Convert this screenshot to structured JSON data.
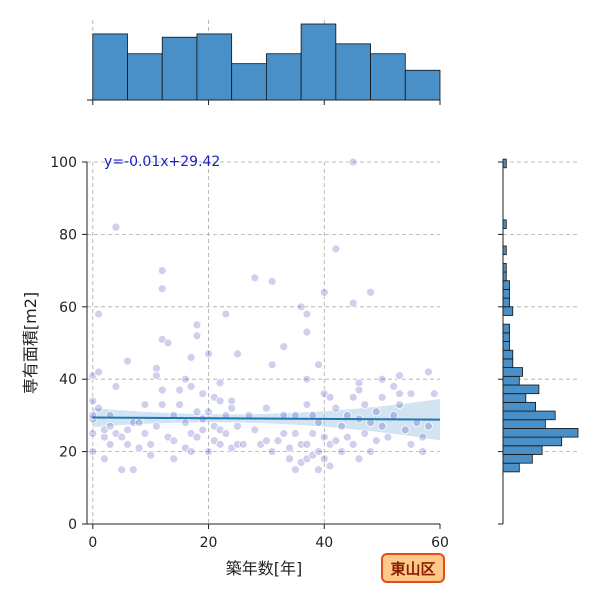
{
  "chart_data": {
    "type": "scatter",
    "xlabel": "築年数[年]",
    "ylabel": "専有面積[m2]",
    "xlim": [
      -1,
      60
    ],
    "ylim": [
      0,
      100
    ],
    "x_ticks": [
      0,
      20,
      40,
      60
    ],
    "y_ticks": [
      0,
      20,
      40,
      60,
      80,
      100
    ],
    "grid": true,
    "annotation": "y=-0.01x+29.42",
    "badge": "東山区",
    "regression": {
      "slope": -0.01,
      "intercept": 29.42,
      "x_range": [
        0,
        60
      ]
    },
    "point_color": "#2a2ab0",
    "line_color": "#1f77b4",
    "hist_color": "#4a90c8",
    "points": [
      [
        0,
        20
      ],
      [
        0,
        25
      ],
      [
        0,
        29
      ],
      [
        0,
        30
      ],
      [
        0,
        34
      ],
      [
        0,
        41
      ],
      [
        1,
        42
      ],
      [
        1,
        58
      ],
      [
        1,
        32
      ],
      [
        2,
        18
      ],
      [
        2,
        24
      ],
      [
        2,
        26
      ],
      [
        3,
        22
      ],
      [
        3,
        27
      ],
      [
        3,
        30
      ],
      [
        4,
        38
      ],
      [
        4,
        82
      ],
      [
        4,
        25
      ],
      [
        5,
        15
      ],
      [
        5,
        24
      ],
      [
        6,
        45
      ],
      [
        6,
        26
      ],
      [
        6,
        22
      ],
      [
        7,
        15
      ],
      [
        7,
        28
      ],
      [
        8,
        21
      ],
      [
        8,
        28
      ],
      [
        9,
        33
      ],
      [
        9,
        25
      ],
      [
        10,
        19
      ],
      [
        10,
        22
      ],
      [
        11,
        41
      ],
      [
        11,
        43
      ],
      [
        11,
        27
      ],
      [
        12,
        70
      ],
      [
        12,
        65
      ],
      [
        12,
        51
      ],
      [
        12,
        37
      ],
      [
        12,
        33
      ],
      [
        13,
        50
      ],
      [
        13,
        24
      ],
      [
        14,
        30
      ],
      [
        14,
        18
      ],
      [
        14,
        23
      ],
      [
        15,
        37
      ],
      [
        15,
        33
      ],
      [
        16,
        40
      ],
      [
        16,
        28
      ],
      [
        16,
        21
      ],
      [
        17,
        46
      ],
      [
        17,
        38
      ],
      [
        17,
        25
      ],
      [
        17,
        20
      ],
      [
        18,
        55
      ],
      [
        18,
        52
      ],
      [
        18,
        31
      ],
      [
        18,
        24
      ],
      [
        19,
        36
      ],
      [
        19,
        29
      ],
      [
        19,
        26
      ],
      [
        20,
        47
      ],
      [
        20,
        20
      ],
      [
        20,
        31
      ],
      [
        21,
        27
      ],
      [
        21,
        23
      ],
      [
        21,
        35
      ],
      [
        22,
        34
      ],
      [
        22,
        26
      ],
      [
        22,
        22
      ],
      [
        22,
        39
      ],
      [
        23,
        58
      ],
      [
        23,
        30
      ],
      [
        23,
        25
      ],
      [
        24,
        34
      ],
      [
        24,
        32
      ],
      [
        24,
        21
      ],
      [
        25,
        47
      ],
      [
        25,
        27
      ],
      [
        25,
        22
      ],
      [
        26,
        22
      ],
      [
        27,
        30
      ],
      [
        28,
        68
      ],
      [
        28,
        26
      ],
      [
        29,
        22
      ],
      [
        30,
        32
      ],
      [
        30,
        23
      ],
      [
        31,
        67
      ],
      [
        31,
        44
      ],
      [
        31,
        20
      ],
      [
        32,
        23
      ],
      [
        33,
        49
      ],
      [
        33,
        30
      ],
      [
        33,
        25
      ],
      [
        34,
        21
      ],
      [
        34,
        18
      ],
      [
        35,
        30
      ],
      [
        35,
        25
      ],
      [
        35,
        15
      ],
      [
        36,
        60
      ],
      [
        36,
        22
      ],
      [
        36,
        17
      ],
      [
        37,
        53
      ],
      [
        37,
        58
      ],
      [
        37,
        40
      ],
      [
        37,
        33
      ],
      [
        37,
        22
      ],
      [
        37,
        18
      ],
      [
        38,
        30
      ],
      [
        38,
        25
      ],
      [
        38,
        19
      ],
      [
        39,
        44
      ],
      [
        39,
        28
      ],
      [
        39,
        20
      ],
      [
        39,
        15
      ],
      [
        40,
        64
      ],
      [
        40,
        36
      ],
      [
        40,
        24
      ],
      [
        40,
        18
      ],
      [
        41,
        35
      ],
      [
        41,
        22
      ],
      [
        41,
        16
      ],
      [
        42,
        76
      ],
      [
        42,
        32
      ],
      [
        42,
        23
      ],
      [
        43,
        20
      ],
      [
        43,
        27
      ],
      [
        44,
        30
      ],
      [
        44,
        24
      ],
      [
        45,
        61
      ],
      [
        45,
        100
      ],
      [
        45,
        35
      ],
      [
        45,
        22
      ],
      [
        46,
        37
      ],
      [
        46,
        39
      ],
      [
        46,
        29
      ],
      [
        46,
        18
      ],
      [
        47,
        33
      ],
      [
        47,
        25
      ],
      [
        48,
        64
      ],
      [
        48,
        20
      ],
      [
        48,
        28
      ],
      [
        49,
        31
      ],
      [
        49,
        23
      ],
      [
        50,
        40
      ],
      [
        50,
        35
      ],
      [
        50,
        27
      ],
      [
        51,
        24
      ],
      [
        52,
        38
      ],
      [
        52,
        30
      ],
      [
        53,
        36
      ],
      [
        53,
        41
      ],
      [
        53,
        33
      ],
      [
        54,
        26
      ],
      [
        55,
        36
      ],
      [
        55,
        22
      ],
      [
        56,
        28
      ],
      [
        57,
        20
      ],
      [
        57,
        24
      ],
      [
        58,
        42
      ],
      [
        58,
        27
      ],
      [
        59,
        36
      ]
    ]
  }
}
